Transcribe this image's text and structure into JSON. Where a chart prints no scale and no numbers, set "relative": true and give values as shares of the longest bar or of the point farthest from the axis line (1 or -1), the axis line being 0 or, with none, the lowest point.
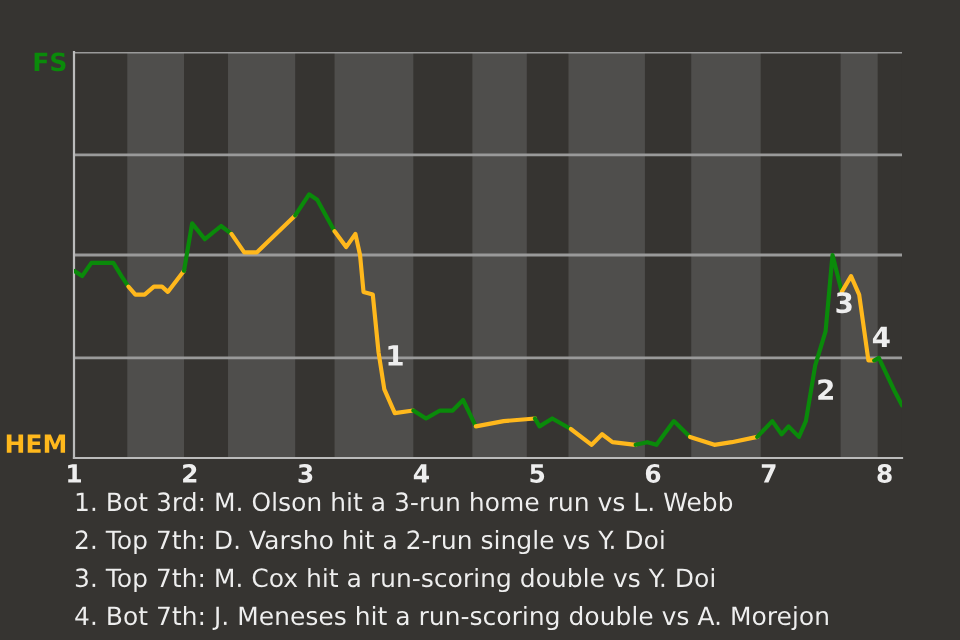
{
  "chart_data": {
    "type": "line",
    "relative": true,
    "xlim": [
      1,
      8.15
    ],
    "xticks": [
      1,
      2,
      3,
      4,
      5,
      6,
      7,
      8
    ],
    "ref_lines": [
      {
        "axis": "y",
        "value": 0.38,
        "color": "#9a9a9a"
      },
      {
        "axis": "y",
        "value": 0.77,
        "color": "#9a9a9a"
      },
      {
        "axis": "y",
        "value": 1.15,
        "color": "#9a9a9a"
      },
      {
        "axis": "y",
        "value": 1.54,
        "color": "#9a9a9a"
      }
    ],
    "series": [
      {
        "color": "#0a8a0a",
        "x": [
          1,
          1.07,
          1.15,
          1.34,
          1.41,
          1.47
        ],
        "values": [
          0.71,
          0.69,
          0.74,
          0.74,
          0.69,
          0.65
        ]
      },
      {
        "color": "#ffb81c",
        "x": [
          1.47,
          1.53,
          1.61,
          1.69,
          1.76,
          1.81,
          1.95
        ],
        "values": [
          0.65,
          0.62,
          0.62,
          0.65,
          0.65,
          0.63,
          0.71
        ]
      },
      {
        "color": "#0a8a0a",
        "x": [
          1.95,
          2.02,
          2.13,
          2.27,
          2.36
        ],
        "values": [
          0.71,
          0.89,
          0.83,
          0.88,
          0.85
        ]
      },
      {
        "color": "#ffb81c",
        "x": [
          2.36,
          2.47,
          2.58,
          2.91
        ],
        "values": [
          0.85,
          0.78,
          0.78,
          0.92
        ]
      },
      {
        "color": "#0a8a0a",
        "x": [
          2.91,
          3.03,
          3.1,
          3.25
        ],
        "values": [
          0.92,
          1,
          0.98,
          0.86
        ]
      },
      {
        "color": "#ffb81c",
        "x": [
          3.25,
          3.35,
          3.43,
          3.47,
          3.5,
          3.58,
          3.63,
          3.68,
          3.77,
          3.93
        ],
        "values": [
          0.86,
          0.8,
          0.85,
          0.77,
          0.63,
          0.62,
          0.4,
          0.26,
          0.17,
          0.18
        ]
      },
      {
        "color": "#0a8a0a",
        "x": [
          3.93,
          4.04,
          4.16,
          4.27,
          4.36,
          4.47
        ],
        "values": [
          0.18,
          0.15,
          0.18,
          0.18,
          0.22,
          0.12
        ]
      },
      {
        "color": "#ffb81c",
        "x": [
          4.47,
          4.71,
          4.98
        ],
        "values": [
          0.12,
          0.14,
          0.15
        ]
      },
      {
        "color": "#0a8a0a",
        "x": [
          4.98,
          5.02,
          5.13,
          5.29
        ],
        "values": [
          0.15,
          0.12,
          0.15,
          0.11
        ]
      },
      {
        "color": "#ffb81c",
        "x": [
          5.29,
          5.47,
          5.56,
          5.65,
          5.85
        ],
        "values": [
          0.11,
          0.05,
          0.09,
          0.06,
          0.05
        ]
      },
      {
        "color": "#0a8a0a",
        "x": [
          5.85,
          5.95,
          6.03,
          6.18,
          6.32
        ],
        "values": [
          0.05,
          0.06,
          0.05,
          0.14,
          0.08
        ]
      },
      {
        "color": "#ffb81c",
        "x": [
          6.32,
          6.53,
          6.68,
          6.9
        ],
        "values": [
          0.08,
          0.05,
          0.06,
          0.08
        ]
      },
      {
        "color": "#0a8a0a",
        "x": [
          6.9,
          7.03,
          7.11,
          7.17,
          7.26,
          7.32,
          7.4,
          7.49,
          7.55,
          7.63
        ],
        "values": [
          0.08,
          0.14,
          0.09,
          0.12,
          0.08,
          0.14,
          0.35,
          0.48,
          0.77,
          0.63
        ]
      },
      {
        "color": "#ffb81c",
        "x": [
          7.63,
          7.71,
          7.78,
          7.86,
          7.91
        ],
        "values": [
          0.63,
          0.69,
          0.62,
          0.37,
          0.37
        ]
      },
      {
        "color": "#0a8a0a",
        "x": [
          7.91,
          7.95,
          8.09,
          8.15
        ],
        "values": [
          0.37,
          0.38,
          0.25,
          0.2
        ]
      }
    ],
    "bands": [
      {
        "axis": "x",
        "from": 1.46,
        "to": 1.95,
        "color": "#4f4e4c"
      },
      {
        "axis": "x",
        "from": 2.33,
        "to": 2.91,
        "color": "#4f4e4c"
      },
      {
        "axis": "x",
        "from": 3.25,
        "to": 3.93,
        "color": "#4f4e4c"
      },
      {
        "axis": "x",
        "from": 4.44,
        "to": 4.91,
        "color": "#4f4e4c"
      },
      {
        "axis": "x",
        "from": 5.27,
        "to": 5.93,
        "color": "#4f4e4c"
      },
      {
        "axis": "x",
        "from": 6.33,
        "to": 6.93,
        "color": "#4f4e4c"
      },
      {
        "axis": "x",
        "from": 7.62,
        "to": 7.94,
        "color": "#4f4e4c"
      }
    ],
    "annotations": [
      "FS",
      "HEM",
      {
        "text": "1",
        "x": 3.64,
        "y": 0.38
      },
      {
        "text": "2",
        "x": 7.36,
        "y": 0.25
      },
      {
        "text": "3",
        "x": 7.52,
        "y": 0.58
      },
      {
        "text": "4",
        "x": 7.84,
        "y": 0.45
      },
      "1. Bot 3rd: M. Olson hit a 3-run home run vs L. Webb",
      "2. Top 7th: D. Varsho hit a 2-run single vs Y. Doi",
      "3. Top 7th: M. Cox hit a run-scoring double vs Y. Doi",
      "4. Bot 7th: J. Meneses hit a run-scoring double vs A. Morejon"
    ]
  }
}
